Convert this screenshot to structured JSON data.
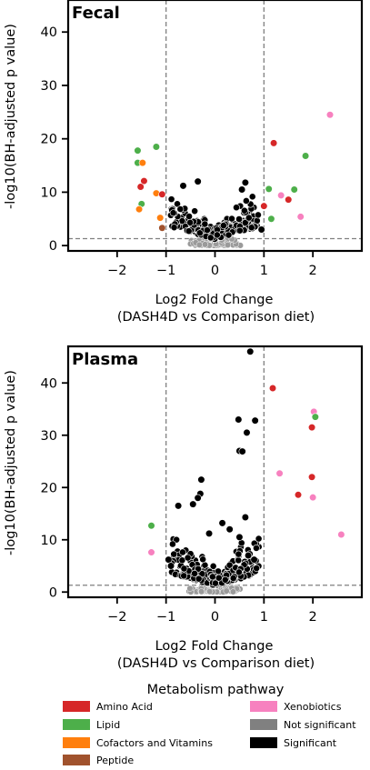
{
  "legend": {
    "title": "Metabolism pathway",
    "items": [
      {
        "label": "Amino Acid",
        "color": "#d62728"
      },
      {
        "label": "Lipid",
        "color": "#4daf4a"
      },
      {
        "label": "Cofactors and Vitamins",
        "color": "#ff7f0e"
      },
      {
        "label": "Peptide",
        "color": "#a0522d"
      },
      {
        "label": "Xenobiotics",
        "color": "#f781bf"
      },
      {
        "label": "Not significant",
        "color": "#808080"
      },
      {
        "label": "Significant",
        "color": "#000000"
      }
    ]
  },
  "chart_data": [
    {
      "type": "scatter",
      "title": "Fecal",
      "xlabel": "Log2 Fold Change",
      "xlabel2": "(DASH4D vs Comparison diet)",
      "ylabel": "-log10(BH-adjusted p value)",
      "xlim": [
        -3,
        3
      ],
      "ylim": [
        -1,
        46
      ],
      "xticks": [
        "−2",
        "−1",
        "0",
        "1",
        "2"
      ],
      "xtick_values": [
        -2,
        -1,
        0,
        1,
        2
      ],
      "yticks": [
        "0",
        "10",
        "20",
        "30",
        "40"
      ],
      "ytick_values": [
        0,
        10,
        20,
        30,
        40
      ],
      "vlines": [
        -1,
        1
      ],
      "hline": 1.3,
      "points": [
        {
          "x": 2.35,
          "y": 24.5,
          "cat": "Xenobiotics"
        },
        {
          "x": 1.2,
          "y": 19.2,
          "cat": "Amino Acid"
        },
        {
          "x": 1.85,
          "y": 16.8,
          "cat": "Lipid"
        },
        {
          "x": -1.58,
          "y": 17.8,
          "cat": "Lipid"
        },
        {
          "x": -1.2,
          "y": 18.5,
          "cat": "Lipid"
        },
        {
          "x": -1.58,
          "y": 15.5,
          "cat": "Lipid"
        },
        {
          "x": -1.48,
          "y": 15.5,
          "cat": "Cofactors and Vitamins"
        },
        {
          "x": -1.45,
          "y": 12.1,
          "cat": "Amino Acid"
        },
        {
          "x": -1.52,
          "y": 11.0,
          "cat": "Amino Acid"
        },
        {
          "x": -1.2,
          "y": 9.8,
          "cat": "Cofactors and Vitamins"
        },
        {
          "x": -1.08,
          "y": 9.6,
          "cat": "Amino Acid"
        },
        {
          "x": -1.5,
          "y": 7.8,
          "cat": "Lipid"
        },
        {
          "x": -1.55,
          "y": 6.8,
          "cat": "Cofactors and Vitamins"
        },
        {
          "x": -1.12,
          "y": 5.2,
          "cat": "Cofactors and Vitamins"
        },
        {
          "x": -1.08,
          "y": 3.3,
          "cat": "Peptide"
        },
        {
          "x": 1.1,
          "y": 10.6,
          "cat": "Lipid"
        },
        {
          "x": 1.62,
          "y": 10.5,
          "cat": "Lipid"
        },
        {
          "x": 1.35,
          "y": 9.4,
          "cat": "Xenobiotics"
        },
        {
          "x": 1.5,
          "y": 8.6,
          "cat": "Amino Acid"
        },
        {
          "x": 1.0,
          "y": 7.4,
          "cat": "Amino Acid"
        },
        {
          "x": 1.75,
          "y": 5.4,
          "cat": "Xenobiotics"
        },
        {
          "x": 1.15,
          "y": 5.0,
          "cat": "Lipid"
        },
        {
          "x": -0.65,
          "y": 11.2,
          "cat": "Significant"
        },
        {
          "x": -0.35,
          "y": 12.0,
          "cat": "Significant"
        },
        {
          "x": 0.62,
          "y": 11.8,
          "cat": "Significant"
        },
        {
          "x": 0.55,
          "y": 10.5,
          "cat": "Significant"
        },
        {
          "x": 0.95,
          "y": 3.0,
          "cat": "Significant"
        }
      ]
    },
    {
      "type": "scatter",
      "title": "Plasma",
      "xlabel": "Log2 Fold Change",
      "xlabel2": "(DASH4D vs Comparison diet)",
      "ylabel": "-log10(BH-adjusted p value)",
      "xlim": [
        -3,
        3
      ],
      "ylim": [
        -1,
        47
      ],
      "xticks": [
        "−2",
        "−1",
        "0",
        "1",
        "2"
      ],
      "xtick_values": [
        -2,
        -1,
        0,
        1,
        2
      ],
      "yticks": [
        "0",
        "10",
        "20",
        "30",
        "40"
      ],
      "ytick_values": [
        0,
        10,
        20,
        30,
        40
      ],
      "vlines": [
        -1,
        1
      ],
      "hline": 1.3,
      "points": [
        {
          "x": 1.18,
          "y": 39.0,
          "cat": "Amino Acid"
        },
        {
          "x": 2.02,
          "y": 34.5,
          "cat": "Xenobiotics"
        },
        {
          "x": 2.05,
          "y": 33.5,
          "cat": "Lipid"
        },
        {
          "x": 1.98,
          "y": 31.5,
          "cat": "Amino Acid"
        },
        {
          "x": 1.32,
          "y": 22.7,
          "cat": "Xenobiotics"
        },
        {
          "x": 1.98,
          "y": 22.0,
          "cat": "Amino Acid"
        },
        {
          "x": 1.7,
          "y": 18.6,
          "cat": "Amino Acid"
        },
        {
          "x": 2.0,
          "y": 18.1,
          "cat": "Xenobiotics"
        },
        {
          "x": 2.58,
          "y": 11.0,
          "cat": "Xenobiotics"
        },
        {
          "x": -1.3,
          "y": 12.7,
          "cat": "Lipid"
        },
        {
          "x": -1.3,
          "y": 7.6,
          "cat": "Xenobiotics"
        },
        {
          "x": 0.72,
          "y": 46.0,
          "cat": "Significant"
        },
        {
          "x": 0.48,
          "y": 33.0,
          "cat": "Significant"
        },
        {
          "x": 0.82,
          "y": 32.8,
          "cat": "Significant"
        },
        {
          "x": 0.65,
          "y": 30.5,
          "cat": "Significant"
        },
        {
          "x": 0.5,
          "y": 27.0,
          "cat": "Significant"
        },
        {
          "x": 0.56,
          "y": 26.9,
          "cat": "Significant"
        },
        {
          "x": -0.28,
          "y": 21.5,
          "cat": "Significant"
        },
        {
          "x": -0.3,
          "y": 18.8,
          "cat": "Significant"
        },
        {
          "x": -0.35,
          "y": 18.0,
          "cat": "Significant"
        },
        {
          "x": -0.75,
          "y": 16.5,
          "cat": "Significant"
        },
        {
          "x": -0.45,
          "y": 16.8,
          "cat": "Significant"
        },
        {
          "x": 0.62,
          "y": 14.3,
          "cat": "Significant"
        },
        {
          "x": 0.15,
          "y": 13.2,
          "cat": "Significant"
        },
        {
          "x": 0.3,
          "y": 12.0,
          "cat": "Significant"
        },
        {
          "x": -0.12,
          "y": 11.2,
          "cat": "Significant"
        },
        {
          "x": 0.5,
          "y": 10.5,
          "cat": "Significant"
        },
        {
          "x": -0.95,
          "y": 6.2,
          "cat": "Significant"
        },
        {
          "x": -0.9,
          "y": 5.0,
          "cat": "Significant"
        },
        {
          "x": 0.68,
          "y": 7.0,
          "cat": "Significant"
        },
        {
          "x": 0.8,
          "y": 6.2,
          "cat": "Significant"
        }
      ]
    }
  ]
}
